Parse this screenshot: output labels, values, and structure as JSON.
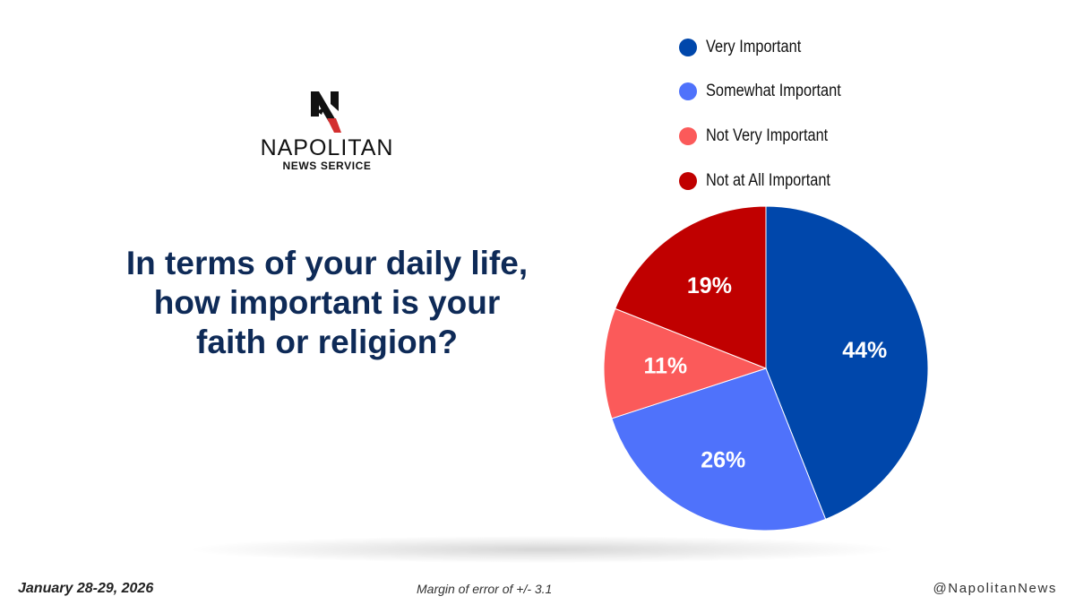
{
  "brand": {
    "name": "NAPOLITAN",
    "subname": "NEWS SERVICE"
  },
  "question": {
    "line1": "In terms of your daily life,",
    "line2": "how important is your",
    "line3": "faith or religion?"
  },
  "footer": {
    "date": "January 28-29, 2026",
    "margin": "Margin of error of +/- 3.1",
    "handle": "@NapolitanNews"
  },
  "chart_data": {
    "type": "pie",
    "title": "",
    "legend_position": "top-right",
    "slices": [
      {
        "name": "Very Important",
        "value": 44,
        "label": "44%",
        "color": "#0047ab"
      },
      {
        "name": "Somewhat Important",
        "value": 26,
        "label": "26%",
        "color": "#4f72fb"
      },
      {
        "name": "Not Very Important",
        "value": 11,
        "label": "11%",
        "color": "#fb5a5a"
      },
      {
        "name": "Not at All Important",
        "value": 19,
        "label": "19%",
        "color": "#c00000"
      }
    ]
  }
}
